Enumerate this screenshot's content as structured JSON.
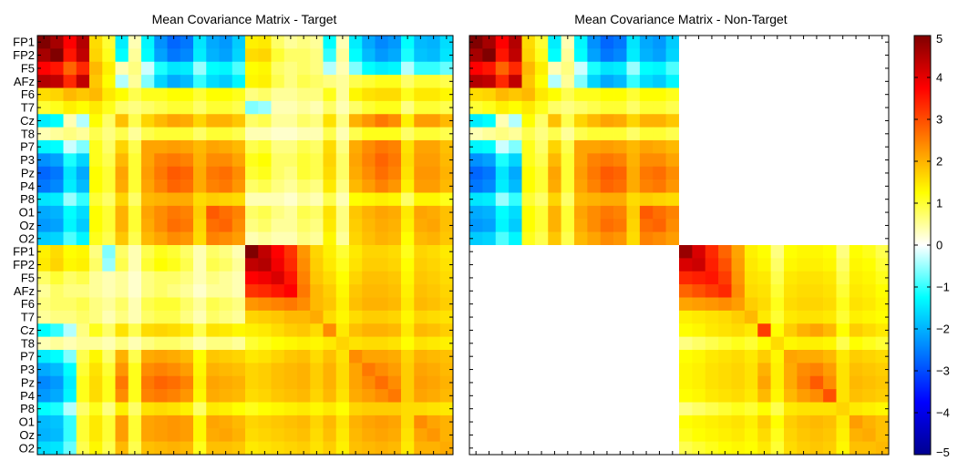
{
  "figure": {
    "background": "#ffffff"
  },
  "chart_data": {
    "type": "heatmap",
    "colormap": "jet",
    "colorbar": {
      "range": [
        -5,
        5
      ],
      "tick_labels": [
        "5",
        "4",
        "3",
        "2",
        "1",
        "0",
        "−1",
        "−2",
        "−3",
        "−4",
        "−5"
      ],
      "tick_values": [
        5,
        4,
        3,
        2,
        1,
        0,
        -1,
        -2,
        -3,
        -4,
        -5
      ]
    },
    "panels": [
      {
        "title": "Mean Covariance Matrix - Target",
        "row_labels": [
          "FP1",
          "FP2",
          "F5",
          "AFz",
          "F6",
          "T7",
          "Cz",
          "T8",
          "P7",
          "P3",
          "Pz",
          "P4",
          "P8",
          "O1",
          "Oz",
          "O2",
          "FP1",
          "FP2",
          "F5",
          "AFz",
          "F6",
          "T7",
          "Cz",
          "T8",
          "P7",
          "P3",
          "Pz",
          "P4",
          "P8",
          "O1",
          "Oz",
          "O2"
        ],
        "grid_size": 32,
        "block_structure": "full_32x32",
        "block_quadrants": {
          "eeg_eeg": "16x16 block A",
          "cross": "16x16 block B (symmetric)",
          "template_template": "16x16 block C"
        },
        "eeg_channels": 16
      },
      {
        "title": "Mean Covariance Matrix - Non-Target",
        "row_labels": [],
        "grid_size": 32,
        "block_structure": "block_diagonal",
        "block_quadrants": {
          "eeg_eeg": "16x16 block A",
          "cross": "zero",
          "template_template": "16x16 block C2"
        },
        "eeg_channels": 16
      }
    ],
    "blocks": {
      "A_eeg_eeg": [
        [
          5.0,
          4.7,
          4.0,
          4.6,
          1.5,
          0.8,
          -1.2,
          0.3,
          -1.1,
          -2.3,
          -2.8,
          -2.6,
          -1.3,
          -2.0,
          -2.2,
          -1.6
        ],
        [
          4.7,
          5.0,
          3.8,
          4.5,
          1.6,
          0.9,
          -1.0,
          0.4,
          -1.0,
          -2.1,
          -2.6,
          -2.4,
          -1.2,
          -1.9,
          -2.1,
          -1.5
        ],
        [
          4.0,
          3.8,
          3.0,
          3.6,
          2.0,
          1.2,
          0.3,
          0.5,
          -0.2,
          -0.9,
          -1.3,
          -1.2,
          -0.4,
          -1.0,
          -1.1,
          -0.7
        ],
        [
          4.6,
          4.5,
          3.6,
          4.5,
          1.8,
          1.0,
          -0.3,
          0.4,
          -0.5,
          -1.5,
          -2.0,
          -1.8,
          -0.8,
          -1.4,
          -1.6,
          -1.1
        ],
        [
          1.5,
          1.6,
          2.0,
          1.8,
          2.0,
          1.3,
          1.0,
          0.7,
          0.9,
          0.9,
          1.0,
          1.0,
          0.8,
          1.0,
          1.0,
          0.9
        ],
        [
          0.8,
          0.9,
          1.2,
          1.0,
          1.3,
          0.9,
          0.6,
          0.5,
          0.6,
          0.7,
          0.8,
          0.8,
          0.6,
          0.8,
          0.8,
          0.7
        ],
        [
          -1.2,
          -1.0,
          0.3,
          -0.3,
          1.0,
          0.6,
          1.9,
          0.7,
          1.6,
          2.0,
          2.3,
          2.2,
          1.6,
          2.1,
          2.1,
          1.8
        ],
        [
          0.3,
          0.4,
          0.5,
          0.4,
          0.7,
          0.5,
          0.7,
          0.4,
          0.7,
          0.8,
          0.8,
          0.8,
          0.6,
          0.8,
          0.8,
          0.7
        ],
        [
          -1.1,
          -1.0,
          -0.2,
          -0.5,
          0.9,
          0.6,
          1.6,
          0.7,
          2.3,
          2.3,
          2.4,
          2.3,
          2.0,
          2.3,
          2.2,
          2.0
        ],
        [
          -2.3,
          -2.1,
          -0.9,
          -1.5,
          0.9,
          0.7,
          2.0,
          0.8,
          2.3,
          2.7,
          2.8,
          2.7,
          2.1,
          2.6,
          2.6,
          2.3
        ],
        [
          -2.8,
          -2.6,
          -1.3,
          -2.0,
          1.0,
          0.8,
          2.3,
          0.8,
          2.4,
          2.8,
          3.1,
          3.0,
          2.2,
          2.8,
          2.9,
          2.6
        ],
        [
          -2.6,
          -2.4,
          -1.2,
          -1.8,
          1.0,
          0.8,
          2.2,
          0.8,
          2.3,
          2.7,
          3.0,
          2.9,
          2.2,
          2.7,
          2.8,
          2.5
        ],
        [
          -1.3,
          -1.2,
          -0.4,
          -0.8,
          0.8,
          0.6,
          1.6,
          0.6,
          2.0,
          2.1,
          2.2,
          2.2,
          1.5,
          1.7,
          1.6,
          1.5
        ],
        [
          -2.0,
          -1.9,
          -1.0,
          -1.4,
          1.0,
          0.8,
          2.1,
          0.8,
          2.3,
          2.6,
          2.8,
          2.7,
          1.7,
          3.1,
          2.9,
          2.7
        ],
        [
          -2.2,
          -2.1,
          -1.1,
          -1.6,
          1.0,
          0.8,
          2.1,
          0.8,
          2.2,
          2.6,
          2.9,
          2.8,
          1.6,
          2.9,
          3.0,
          2.6
        ],
        [
          -1.6,
          -1.5,
          -0.7,
          -1.1,
          0.9,
          0.7,
          1.8,
          0.7,
          2.0,
          2.3,
          2.6,
          2.5,
          1.5,
          2.7,
          2.6,
          2.4
        ]
      ],
      "B_cross": [
        [
          1.2,
          1.5,
          1.0,
          1.1,
          0.5,
          -0.5,
          0.6,
          0.3,
          0.7,
          0.9,
          0.8,
          0.6,
          0.3,
          0.6,
          0.5,
          0.3
        ],
        [
          1.3,
          1.6,
          1.1,
          1.2,
          0.6,
          -0.4,
          0.7,
          0.3,
          0.8,
          1.0,
          0.9,
          0.7,
          0.3,
          0.7,
          0.6,
          0.4
        ],
        [
          0.6,
          0.8,
          0.6,
          0.7,
          0.4,
          0.3,
          0.4,
          0.2,
          0.5,
          0.6,
          0.6,
          0.5,
          0.3,
          0.5,
          0.4,
          0.3
        ],
        [
          0.4,
          0.6,
          0.5,
          0.5,
          0.4,
          0.3,
          0.4,
          0.2,
          0.5,
          0.6,
          0.5,
          0.4,
          0.2,
          0.4,
          0.4,
          0.3
        ],
        [
          0.5,
          0.6,
          0.6,
          0.7,
          0.5,
          0.4,
          0.6,
          0.3,
          0.7,
          0.8,
          0.8,
          0.6,
          0.4,
          0.7,
          0.6,
          0.5
        ],
        [
          0.4,
          0.5,
          0.5,
          0.6,
          0.5,
          0.3,
          0.5,
          0.3,
          0.6,
          0.7,
          0.7,
          0.5,
          0.3,
          0.6,
          0.5,
          0.4
        ],
        [
          -1.0,
          -0.8,
          -0.3,
          0.5,
          0.9,
          0.6,
          1.4,
          0.7,
          1.5,
          1.6,
          1.5,
          1.3,
          0.7,
          1.4,
          1.3,
          1.1
        ],
        [
          0.3,
          0.4,
          0.3,
          0.4,
          0.4,
          0.3,
          0.5,
          0.3,
          0.5,
          0.6,
          0.6,
          0.5,
          0.3,
          0.5,
          0.5,
          0.4
        ],
        [
          -1.2,
          -1.0,
          -0.5,
          0.7,
          1.1,
          0.6,
          2.1,
          0.7,
          2.2,
          2.3,
          2.2,
          2.0,
          1.0,
          1.8,
          1.7,
          1.6
        ],
        [
          -2.0,
          -1.8,
          -1.0,
          0.8,
          1.4,
          0.8,
          2.5,
          0.9,
          2.6,
          2.7,
          2.6,
          2.4,
          1.1,
          2.1,
          2.0,
          1.9
        ],
        [
          -2.4,
          -2.2,
          -1.2,
          0.9,
          1.5,
          0.9,
          2.8,
          0.9,
          2.8,
          3.0,
          2.9,
          2.7,
          1.2,
          2.3,
          2.2,
          2.1
        ],
        [
          -2.2,
          -2.0,
          -1.1,
          0.9,
          1.5,
          0.9,
          2.6,
          0.9,
          2.7,
          2.8,
          2.7,
          2.5,
          1.1,
          2.2,
          2.1,
          2.0
        ],
        [
          -1.0,
          -0.9,
          -0.3,
          0.6,
          0.9,
          0.5,
          1.2,
          0.6,
          1.4,
          1.5,
          1.4,
          1.2,
          0.6,
          1.3,
          1.2,
          1.0
        ],
        [
          -1.8,
          -1.7,
          -0.8,
          0.8,
          1.3,
          0.8,
          2.4,
          0.8,
          2.3,
          2.4,
          2.5,
          2.4,
          1.1,
          2.3,
          2.2,
          2.0
        ],
        [
          -1.9,
          -1.8,
          -0.8,
          0.8,
          1.3,
          0.8,
          2.4,
          0.8,
          2.3,
          2.4,
          2.5,
          2.4,
          1.1,
          2.2,
          2.3,
          2.1
        ],
        [
          -1.4,
          -1.3,
          -0.6,
          0.7,
          1.1,
          0.7,
          2.0,
          0.7,
          1.9,
          2.0,
          2.1,
          2.0,
          0.9,
          1.9,
          1.9,
          1.8
        ]
      ],
      "C_template_target": [
        [
          5.0,
          4.5,
          4.0,
          3.5,
          2.5,
          1.6,
          1.2,
          0.8,
          1.3,
          1.6,
          1.6,
          1.5,
          0.9,
          1.6,
          1.5,
          1.3
        ],
        [
          4.5,
          4.6,
          4.1,
          3.6,
          2.6,
          1.7,
          1.3,
          0.9,
          1.4,
          1.7,
          1.7,
          1.6,
          1.0,
          1.7,
          1.6,
          1.4
        ],
        [
          4.0,
          4.1,
          4.3,
          3.8,
          2.7,
          1.8,
          1.5,
          1.0,
          1.6,
          1.9,
          1.9,
          1.8,
          1.1,
          1.8,
          1.7,
          1.5
        ],
        [
          3.5,
          3.6,
          3.8,
          4.0,
          2.8,
          2.0,
          1.7,
          1.1,
          1.8,
          2.0,
          2.0,
          1.9,
          1.2,
          1.9,
          1.8,
          1.6
        ],
        [
          2.5,
          2.6,
          2.7,
          2.8,
          2.6,
          2.0,
          1.8,
          1.2,
          1.9,
          2.1,
          2.1,
          2.0,
          1.3,
          2.0,
          1.9,
          1.7
        ],
        [
          1.6,
          1.7,
          1.8,
          2.0,
          2.0,
          2.2,
          1.5,
          1.1,
          1.5,
          1.7,
          1.7,
          1.6,
          1.1,
          1.6,
          1.5,
          1.4
        ],
        [
          1.2,
          1.3,
          1.5,
          1.7,
          1.8,
          1.5,
          2.6,
          1.3,
          1.9,
          2.1,
          2.1,
          2.0,
          1.3,
          2.0,
          1.9,
          1.7
        ],
        [
          0.8,
          0.9,
          1.0,
          1.1,
          1.2,
          1.1,
          1.3,
          1.6,
          1.4,
          1.5,
          1.5,
          1.4,
          1.0,
          1.4,
          1.3,
          1.2
        ],
        [
          1.3,
          1.4,
          1.6,
          1.8,
          1.9,
          1.5,
          1.9,
          1.4,
          2.6,
          2.3,
          2.3,
          2.2,
          1.6,
          2.1,
          2.0,
          1.9
        ],
        [
          1.6,
          1.7,
          1.9,
          2.0,
          2.1,
          1.7,
          2.1,
          1.5,
          2.3,
          2.8,
          2.6,
          2.4,
          1.7,
          2.3,
          2.2,
          2.0
        ],
        [
          1.6,
          1.7,
          1.9,
          2.0,
          2.1,
          1.7,
          2.1,
          1.5,
          2.3,
          2.6,
          2.9,
          2.6,
          1.7,
          2.4,
          2.3,
          2.1
        ],
        [
          1.5,
          1.6,
          1.8,
          1.9,
          2.0,
          1.6,
          2.0,
          1.4,
          2.2,
          2.4,
          2.6,
          2.8,
          1.7,
          2.3,
          2.2,
          2.0
        ],
        [
          0.9,
          1.0,
          1.1,
          1.2,
          1.3,
          1.1,
          1.3,
          1.0,
          1.6,
          1.7,
          1.7,
          1.7,
          1.5,
          1.5,
          1.4,
          1.3
        ],
        [
          1.6,
          1.7,
          1.8,
          1.9,
          2.0,
          1.6,
          2.0,
          1.4,
          2.1,
          2.3,
          2.4,
          2.3,
          1.5,
          2.6,
          2.3,
          2.1
        ],
        [
          1.5,
          1.6,
          1.7,
          1.8,
          1.9,
          1.5,
          1.9,
          1.3,
          2.0,
          2.2,
          2.3,
          2.2,
          1.4,
          2.3,
          2.5,
          2.1
        ],
        [
          1.3,
          1.4,
          1.5,
          1.6,
          1.7,
          1.4,
          1.7,
          1.2,
          1.9,
          2.0,
          2.1,
          2.0,
          1.3,
          2.1,
          2.1,
          2.2
        ]
      ],
      "C2_template_nontarget": [
        [
          4.8,
          4.3,
          3.6,
          3.0,
          2.3,
          1.2,
          1.0,
          0.5,
          1.0,
          1.1,
          1.1,
          1.0,
          0.5,
          1.0,
          0.9,
          0.7
        ],
        [
          4.3,
          4.4,
          3.7,
          3.2,
          2.4,
          1.3,
          1.1,
          0.6,
          1.1,
          1.2,
          1.2,
          1.1,
          0.6,
          1.1,
          1.0,
          0.8
        ],
        [
          3.6,
          3.7,
          3.8,
          3.4,
          2.5,
          1.4,
          1.3,
          0.7,
          1.3,
          1.4,
          1.4,
          1.3,
          0.7,
          1.2,
          1.1,
          0.9
        ],
        [
          3.0,
          3.2,
          3.4,
          3.6,
          2.6,
          1.5,
          1.4,
          0.8,
          1.4,
          1.5,
          1.5,
          1.4,
          0.8,
          1.3,
          1.2,
          1.0
        ],
        [
          2.3,
          2.4,
          2.5,
          2.6,
          2.4,
          1.7,
          1.5,
          0.9,
          1.5,
          1.6,
          1.6,
          1.5,
          0.9,
          1.4,
          1.3,
          1.1
        ],
        [
          1.2,
          1.3,
          1.4,
          1.5,
          1.7,
          2.0,
          1.3,
          0.8,
          1.3,
          1.4,
          1.4,
          1.3,
          0.8,
          1.2,
          1.1,
          1.0
        ],
        [
          1.0,
          1.1,
          1.3,
          1.4,
          1.5,
          1.3,
          3.4,
          1.0,
          1.7,
          2.1,
          2.3,
          2.0,
          1.0,
          1.7,
          1.5,
          1.3
        ],
        [
          0.5,
          0.6,
          0.7,
          0.8,
          0.9,
          0.8,
          1.0,
          1.5,
          1.1,
          1.2,
          1.2,
          1.1,
          0.7,
          1.0,
          0.9,
          0.8
        ],
        [
          1.0,
          1.1,
          1.3,
          1.4,
          1.5,
          1.3,
          1.7,
          1.1,
          2.3,
          2.2,
          2.2,
          2.0,
          1.3,
          1.7,
          1.6,
          1.5
        ],
        [
          1.1,
          1.2,
          1.4,
          1.5,
          1.6,
          1.4,
          2.1,
          1.2,
          2.2,
          2.6,
          2.7,
          2.4,
          1.4,
          1.9,
          1.8,
          1.7
        ],
        [
          1.1,
          1.2,
          1.4,
          1.5,
          1.6,
          1.4,
          2.3,
          1.2,
          2.2,
          2.7,
          3.1,
          2.6,
          1.4,
          2.0,
          1.9,
          1.8
        ],
        [
          1.0,
          1.1,
          1.3,
          1.4,
          1.5,
          1.3,
          2.0,
          1.1,
          2.0,
          2.4,
          2.6,
          3.2,
          1.4,
          1.9,
          1.8,
          1.7
        ],
        [
          0.5,
          0.6,
          0.7,
          0.8,
          0.9,
          0.8,
          1.0,
          0.7,
          1.3,
          1.4,
          1.4,
          1.4,
          1.6,
          1.3,
          1.2,
          1.1
        ],
        [
          1.0,
          1.1,
          1.2,
          1.3,
          1.4,
          1.2,
          1.7,
          1.0,
          1.7,
          1.9,
          2.0,
          1.9,
          1.3,
          2.4,
          2.1,
          1.9
        ],
        [
          0.9,
          1.0,
          1.1,
          1.2,
          1.3,
          1.1,
          1.5,
          0.9,
          1.6,
          1.8,
          1.9,
          1.8,
          1.2,
          2.1,
          2.2,
          1.9
        ],
        [
          0.7,
          0.8,
          0.9,
          1.0,
          1.1,
          1.0,
          1.3,
          0.8,
          1.5,
          1.7,
          1.8,
          1.7,
          1.1,
          1.9,
          1.9,
          2.0
        ]
      ]
    }
  }
}
